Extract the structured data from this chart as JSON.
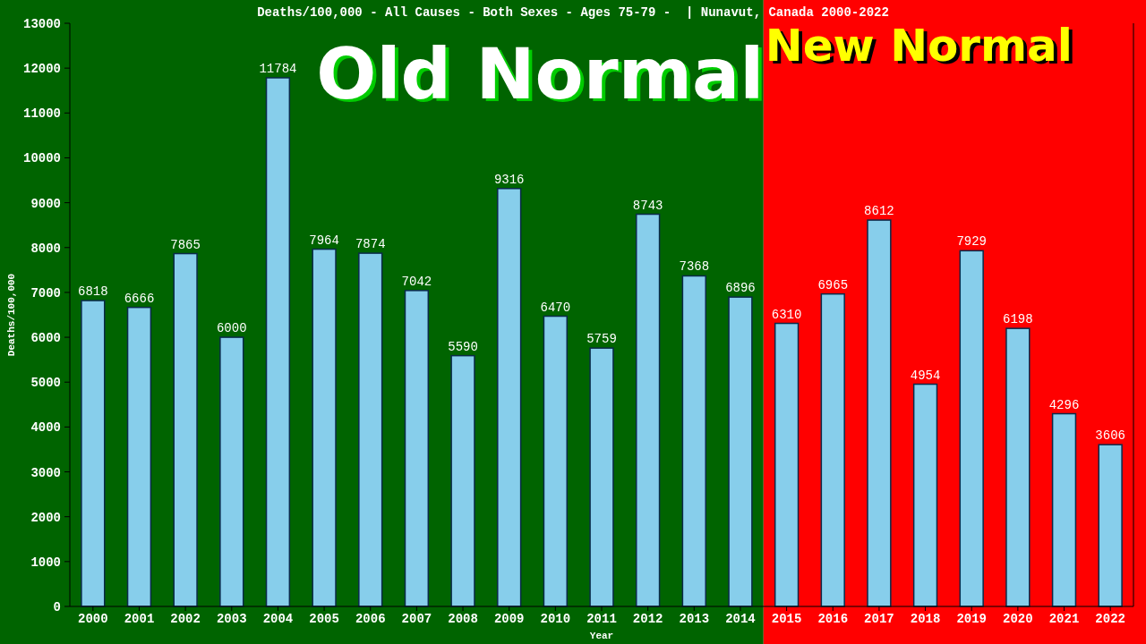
{
  "chart_data": {
    "type": "bar",
    "title": "Deaths/100,000 - All Causes - Both Sexes - Ages 75-79 -  | Nunavut, Canada 2000-2022",
    "xlabel": "Year",
    "ylabel": "Deaths/100,000",
    "categories": [
      "2000",
      "2001",
      "2002",
      "2003",
      "2004",
      "2005",
      "2006",
      "2007",
      "2008",
      "2009",
      "2010",
      "2011",
      "2012",
      "2013",
      "2014",
      "2015",
      "2016",
      "2017",
      "2018",
      "2019",
      "2020",
      "2021",
      "2022"
    ],
    "values": [
      6818,
      6666,
      7865,
      6000,
      11784,
      7964,
      7874,
      7042,
      5590,
      9316,
      6470,
      5759,
      8743,
      7368,
      6896,
      6310,
      6965,
      8612,
      4954,
      7929,
      6198,
      4296,
      3606
    ],
    "color": "#87ceeb",
    "data_labels": true,
    "ylim": [
      0,
      13000
    ],
    "yticks": [
      0,
      1000,
      2000,
      3000,
      4000,
      5000,
      6000,
      7000,
      8000,
      9000,
      10000,
      11000,
      12000,
      13000
    ],
    "grid": false,
    "bands": [
      {
        "axis": "x",
        "from": "2000",
        "to": "2014",
        "label": "Old Normal",
        "color": "#006400"
      },
      {
        "axis": "x",
        "from": "2015",
        "to": "2022",
        "label": "New Normal",
        "color": "#ff0000"
      }
    ]
  }
}
